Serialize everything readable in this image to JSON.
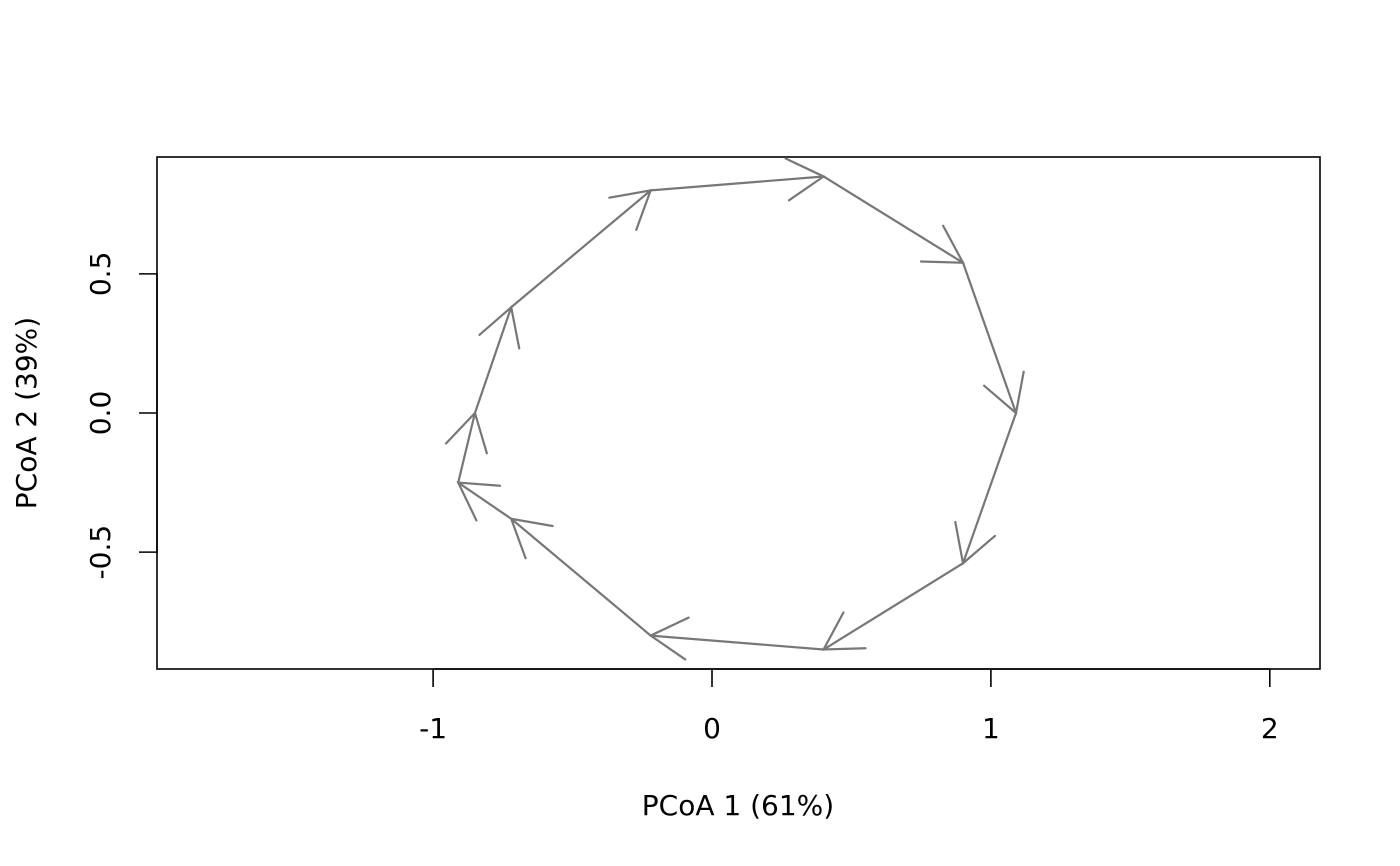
{
  "chart_data": {
    "type": "line",
    "title": "",
    "xlabel": "PCoA 1 (61%)",
    "ylabel": "PCoA 2 (39%)",
    "xlim": [
      -1.99,
      2.18
    ],
    "ylim": [
      -0.92,
      0.92
    ],
    "x_ticks": [
      "-1",
      "0",
      "1",
      "2"
    ],
    "y_ticks": [
      "-0.5",
      "0.0",
      "0.5"
    ],
    "grid": false,
    "arrows": true,
    "series": [
      {
        "color": "#777777",
        "points": [
          [
            -0.85,
            0.0
          ],
          [
            -0.72,
            0.38
          ],
          [
            -0.22,
            0.8
          ],
          [
            0.4,
            0.85
          ],
          [
            0.9,
            0.54
          ],
          [
            1.09,
            0.0
          ],
          [
            0.9,
            -0.54
          ],
          [
            0.4,
            -0.85
          ],
          [
            -0.22,
            -0.8
          ],
          [
            -0.72,
            -0.38
          ],
          [
            -0.91,
            -0.25
          ],
          [
            -0.85,
            0.0
          ]
        ]
      }
    ]
  }
}
